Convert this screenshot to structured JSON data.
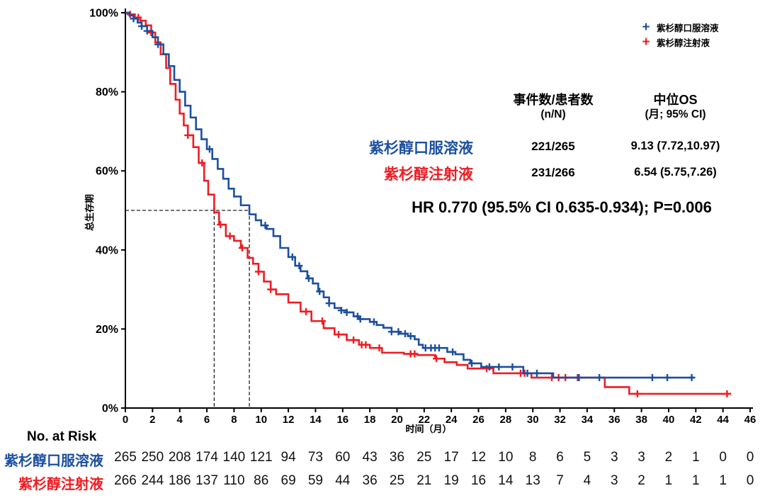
{
  "hr_text": "HR 0.770 (95.5% CI 0.635-0.934); P=0.006",
  "legend": {
    "items": [
      {
        "symbol": "+",
        "label": "紫杉醇口服溶液",
        "color": "#1c4f9f"
      },
      {
        "symbol": "+",
        "label": "紫杉醇注射液",
        "color": "#ee1c23"
      }
    ]
  },
  "stats_table": {
    "col1_header_line1": "事件数/患者数",
    "col1_header_line2": "(n/N)",
    "col2_header_line1": "中位OS",
    "col2_header_line2": "(月; 95% CI)",
    "rows": [
      {
        "label": "紫杉醇口服溶液",
        "color": "#1c4f9f",
        "events_patients": "221/265",
        "median_os": "9.13 (7.72,10.97)"
      },
      {
        "label": "紫杉醇注射液",
        "color": "#ee1c23",
        "events_patients": "231/266",
        "median_os": "6.54 (5.75,7.26)"
      }
    ]
  },
  "chart_data": {
    "type": "line",
    "subtype": "kaplan-meier-step",
    "title": "",
    "xlabel": "时间（月）",
    "ylabel": "总生存期",
    "xlim": [
      0,
      46
    ],
    "ylim": [
      0,
      100
    ],
    "x_ticks": [
      0,
      2,
      4,
      6,
      8,
      10,
      12,
      14,
      16,
      18,
      20,
      22,
      24,
      26,
      28,
      30,
      32,
      34,
      36,
      38,
      40,
      42,
      44,
      46
    ],
    "y_ticks": [
      0,
      20,
      40,
      60,
      80,
      100
    ],
    "y_tick_suffix": "%",
    "grid": false,
    "legend_position": "top-right",
    "annotation": "HR 0.770 (95.5% CI 0.635-0.934); P=0.006",
    "median_reference_pct": 50,
    "series": [
      {
        "name": "紫杉醇注射液",
        "color": "#ee1c23",
        "events_patients": "231/266",
        "median_months": 6.54,
        "median_ci": "5.75,7.26",
        "end_month": 44.6,
        "points": [
          [
            0,
            100
          ],
          [
            0.35,
            99.6
          ],
          [
            0.7,
            98.8
          ],
          [
            1.1,
            98
          ],
          [
            1.5,
            96.8
          ],
          [
            1.9,
            95
          ],
          [
            2.2,
            92.5
          ],
          [
            2.6,
            89.5
          ],
          [
            3.0,
            86
          ],
          [
            3.3,
            82
          ],
          [
            3.7,
            78
          ],
          [
            4.0,
            74.5
          ],
          [
            4.3,
            71.5
          ],
          [
            4.6,
            69
          ],
          [
            5.0,
            66
          ],
          [
            5.4,
            62
          ],
          [
            5.8,
            57.5
          ],
          [
            6.1,
            54
          ],
          [
            6.54,
            49.5
          ],
          [
            6.9,
            46.4
          ],
          [
            7.4,
            43.5
          ],
          [
            8.0,
            42.3
          ],
          [
            8.5,
            40.5
          ],
          [
            9.0,
            38
          ],
          [
            9.4,
            36.5
          ],
          [
            9.8,
            34.5
          ],
          [
            10.2,
            32
          ],
          [
            10.7,
            30
          ],
          [
            11.1,
            28.8
          ],
          [
            12.0,
            26.7
          ],
          [
            12.9,
            24.4
          ],
          [
            13.7,
            22
          ],
          [
            14.6,
            20.2
          ],
          [
            15.4,
            18.6
          ],
          [
            16.3,
            17.2
          ],
          [
            17.2,
            16
          ],
          [
            18.0,
            15.2
          ],
          [
            18.9,
            14
          ],
          [
            20.5,
            13.7
          ],
          [
            21.5,
            13.4
          ],
          [
            22.8,
            12.5
          ],
          [
            23.5,
            11.6
          ],
          [
            24.4,
            10.9
          ],
          [
            25.2,
            10
          ],
          [
            27.1,
            8.8
          ],
          [
            29.9,
            7.7
          ],
          [
            35.3,
            5.3
          ],
          [
            37.1,
            3.6
          ]
        ],
        "censor_months": [
          0.35,
          0.95,
          1.9,
          4.6,
          5.65,
          7.0,
          7.7,
          8.6,
          9.8,
          10.7,
          13.3,
          14.5,
          15.7,
          16.8,
          17.4,
          17.7,
          18.7,
          21.0,
          21.3,
          22.9,
          26.6,
          29.1,
          29.4,
          31.4,
          31.9,
          32.4,
          33.3,
          37.7,
          44.3
        ]
      },
      {
        "name": "紫杉醇口服溶液",
        "color": "#1c4f9f",
        "events_patients": "221/265",
        "median_months": 9.13,
        "median_ci": "7.72,10.97",
        "end_month": 41.9,
        "points": [
          [
            0,
            100
          ],
          [
            0.3,
            99.3
          ],
          [
            0.6,
            98.5
          ],
          [
            0.9,
            97.5
          ],
          [
            1.2,
            96.6
          ],
          [
            1.6,
            95.4
          ],
          [
            2.0,
            93.8
          ],
          [
            2.4,
            92
          ],
          [
            2.8,
            89.5
          ],
          [
            3.2,
            86.5
          ],
          [
            3.6,
            83
          ],
          [
            4.0,
            80
          ],
          [
            4.4,
            76.5
          ],
          [
            4.8,
            73.5
          ],
          [
            5.2,
            70.5
          ],
          [
            5.6,
            68
          ],
          [
            6.0,
            65.5
          ],
          [
            6.4,
            63
          ],
          [
            6.8,
            60.5
          ],
          [
            7.2,
            58
          ],
          [
            7.6,
            55.5
          ],
          [
            8.0,
            53.5
          ],
          [
            8.5,
            51.3
          ],
          [
            9.13,
            49
          ],
          [
            9.6,
            47.5
          ],
          [
            10.0,
            46.2
          ],
          [
            10.4,
            45.3
          ],
          [
            10.9,
            43.5
          ],
          [
            11.4,
            40.5
          ],
          [
            12.0,
            38.2
          ],
          [
            12.5,
            36
          ],
          [
            12.9,
            34.6
          ],
          [
            13.4,
            32.8
          ],
          [
            13.8,
            31.5
          ],
          [
            14.2,
            29.5
          ],
          [
            14.6,
            28
          ],
          [
            15.0,
            26.5
          ],
          [
            15.4,
            25.3
          ],
          [
            15.9,
            24.7
          ],
          [
            16.3,
            24.2
          ],
          [
            16.8,
            23.2
          ],
          [
            17.2,
            22.5
          ],
          [
            18.0,
            21.8
          ],
          [
            18.5,
            21
          ],
          [
            19.0,
            20.3
          ],
          [
            19.6,
            19.3
          ],
          [
            20.2,
            18.8
          ],
          [
            20.8,
            18.2
          ],
          [
            21.3,
            17.4
          ],
          [
            21.6,
            16
          ],
          [
            21.9,
            15.2
          ],
          [
            23.7,
            14.2
          ],
          [
            24.3,
            13.6
          ],
          [
            24.9,
            12.2
          ],
          [
            25.4,
            11.3
          ],
          [
            26.2,
            10.4
          ],
          [
            29.3,
            8.8
          ],
          [
            31.5,
            7.7
          ]
        ],
        "censor_months": [
          0.6,
          1.2,
          1.6,
          2.4,
          6.2,
          10.3,
          12.3,
          12.8,
          13.5,
          14.3,
          15.0,
          15.9,
          16.3,
          17.1,
          17.3,
          18.3,
          19.6,
          20.1,
          20.6,
          21.0,
          22.1,
          22.5,
          22.8,
          23.1,
          24.1,
          25.5,
          26.8,
          27.5,
          28.5,
          29.6,
          30.3,
          33.4,
          34.9,
          38.8,
          39.9,
          41.7
        ]
      }
    ],
    "risk_table": {
      "title": "No. at Risk",
      "time_points": [
        0,
        2,
        4,
        6,
        8,
        10,
        12,
        14,
        16,
        18,
        20,
        22,
        24,
        26,
        28,
        30,
        32,
        34,
        36,
        38,
        40,
        42,
        44,
        46
      ],
      "rows": [
        {
          "label": "紫杉醇口服溶液",
          "color": "#1c4f9f",
          "values": [
            265,
            250,
            208,
            174,
            140,
            121,
            94,
            73,
            60,
            43,
            36,
            25,
            17,
            12,
            10,
            8,
            6,
            5,
            3,
            3,
            2,
            1,
            0,
            0
          ]
        },
        {
          "label": "紫杉醇注射液",
          "color": "#ee1c23",
          "values": [
            266,
            244,
            186,
            137,
            110,
            86,
            69,
            59,
            44,
            36,
            25,
            21,
            19,
            16,
            14,
            13,
            7,
            4,
            3,
            2,
            1,
            1,
            1,
            0
          ]
        }
      ]
    }
  }
}
